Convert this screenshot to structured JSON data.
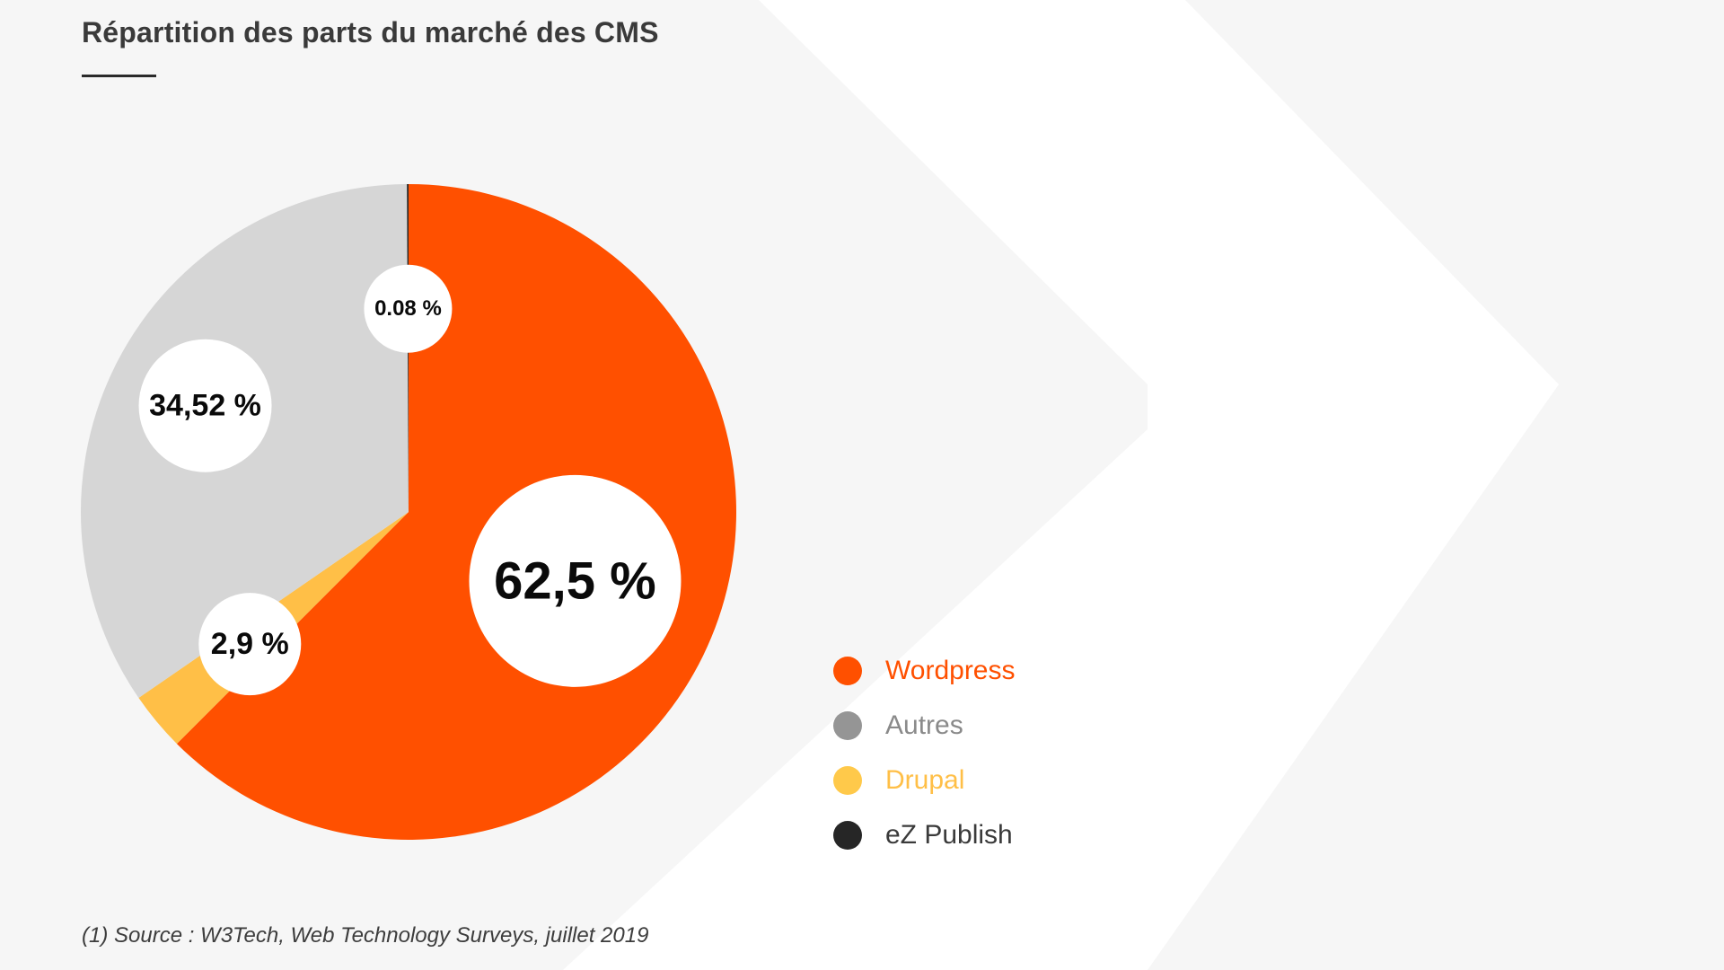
{
  "page": {
    "background_color": "#ffffff",
    "panel_color": "#f6f6f6"
  },
  "chart_data": {
    "type": "pie",
    "title": "Répartition des parts du marché des CMS",
    "slices": [
      {
        "name": "Wordpress",
        "value": 62.5,
        "label": "62,5 %",
        "color": "#ff5000"
      },
      {
        "name": "Drupal",
        "value": 2.9,
        "label": "2,9 %",
        "color": "#ffbf47"
      },
      {
        "name": "Autres",
        "value": 34.52,
        "label": "34,52 %",
        "color": "#d6d6d6"
      },
      {
        "name": "eZ Publish",
        "value": 0.08,
        "label": "0.08 %",
        "color": "#262626"
      }
    ],
    "legend": [
      {
        "label": "Wordpress",
        "color": "#ff5000",
        "text_color": "#ff5000"
      },
      {
        "label": "Autres",
        "color": "#959595",
        "text_color": "#8a8a8a"
      },
      {
        "label": "Drupal",
        "color": "#ffc94a",
        "text_color": "#ffbf47"
      },
      {
        "label": "eZ Publish",
        "color": "#262626",
        "text_color": "#3a3a3a"
      }
    ],
    "legend_position": "right",
    "source": "(1) Source : W3Tech, Web Technology Surveys, juillet 2019"
  }
}
